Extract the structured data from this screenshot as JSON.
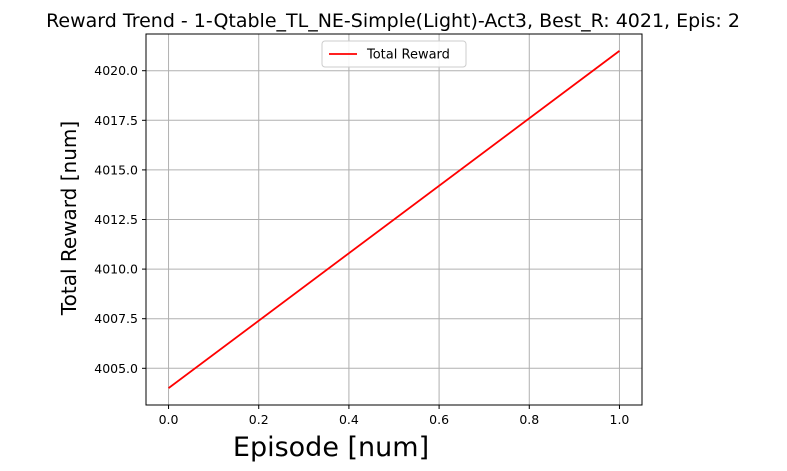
{
  "chart_data": {
    "type": "line",
    "title": "Reward Trend - 1-Qtable_TL_NE-Simple(Light)-Act3, Best_R: 4021, Epis: 2",
    "xlabel": "Episode [num]",
    "ylabel": "Total Reward [num]",
    "xlim": [
      -0.05,
      1.05
    ],
    "ylim": [
      4003.15,
      4021.85
    ],
    "xticks": [
      0.0,
      0.2,
      0.4,
      0.6,
      0.8,
      1.0
    ],
    "xtick_labels": [
      "0.0",
      "0.2",
      "0.4",
      "0.6",
      "0.8",
      "1.0"
    ],
    "yticks": [
      4005.0,
      4007.5,
      4010.0,
      4012.5,
      4015.0,
      4017.5,
      4020.0
    ],
    "ytick_labels": [
      "4005.0",
      "4007.5",
      "4010.0",
      "4012.5",
      "4015.0",
      "4017.5",
      "4020.0"
    ],
    "grid": true,
    "legend_position": "top-center",
    "series": [
      {
        "name": "Total Reward",
        "color": "#ff0000",
        "x": [
          0.0,
          1.0
        ],
        "y": [
          4004,
          4021
        ]
      }
    ]
  }
}
